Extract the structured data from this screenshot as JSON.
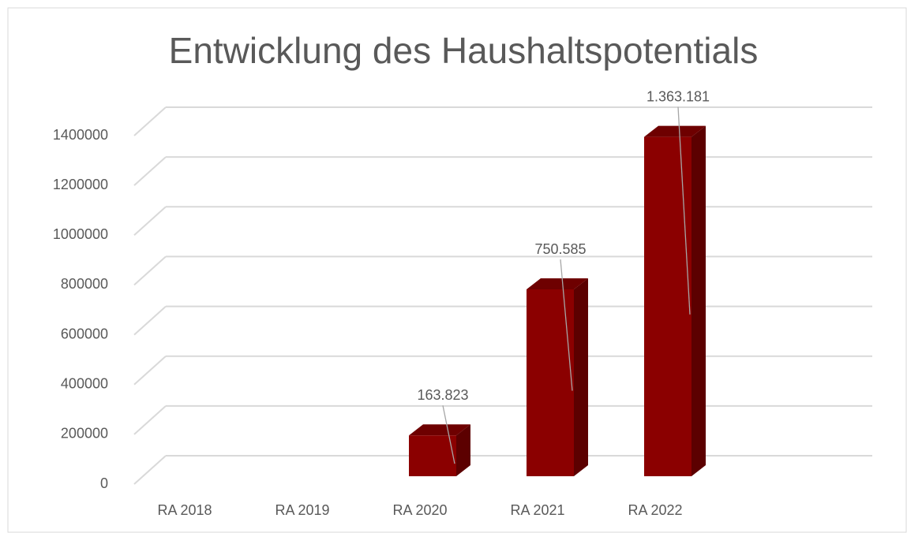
{
  "chart_data": {
    "type": "bar3d",
    "title": "Entwicklung des Haushaltspotentials",
    "categories": [
      "RA 2018",
      "RA 2019",
      "RA 2020",
      "RA 2021",
      "RA 2022"
    ],
    "values": [
      null,
      null,
      163823,
      750585,
      1363181
    ],
    "value_labels": [
      null,
      null,
      "163.823",
      "750.585",
      "1.363.181"
    ],
    "color": "#8b0000",
    "ylim": [
      0,
      1400000
    ],
    "yticks": [
      0,
      200000,
      400000,
      600000,
      800000,
      1000000,
      1200000,
      1400000
    ],
    "grid": true
  }
}
